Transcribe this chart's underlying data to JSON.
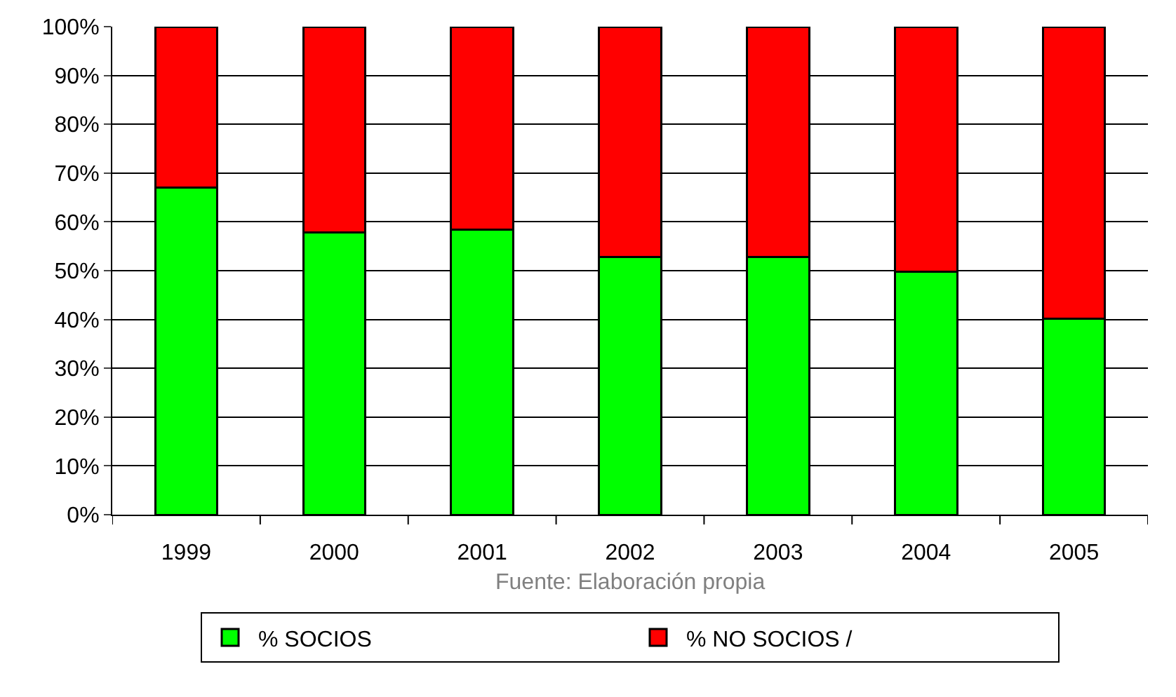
{
  "chart_data": {
    "type": "bar",
    "stacked": true,
    "categories": [
      "1999",
      "2000",
      "2001",
      "2002",
      "2003",
      "2004",
      "2005"
    ],
    "series": [
      {
        "name": "% SOCIOS",
        "color": "#00ff00",
        "values": [
          67.0,
          57.9,
          58.4,
          52.8,
          52.8,
          49.8,
          40.1
        ]
      },
      {
        "name": "% NO SOCIOS /",
        "color": "#ff0000",
        "values": [
          33.0,
          42.1,
          41.6,
          47.2,
          47.2,
          50.2,
          59.9
        ]
      }
    ],
    "ylim": [
      0,
      100
    ],
    "yticks": [
      {
        "value": 0,
        "label": "0%"
      },
      {
        "value": 10,
        "label": "10%"
      },
      {
        "value": 20,
        "label": "20%"
      },
      {
        "value": 30,
        "label": "30%"
      },
      {
        "value": 40,
        "label": "40%"
      },
      {
        "value": 50,
        "label": "50%"
      },
      {
        "value": 60,
        "label": "60%"
      },
      {
        "value": 70,
        "label": "70%"
      },
      {
        "value": 80,
        "label": "80%"
      },
      {
        "value": 90,
        "label": "90%"
      },
      {
        "value": 100,
        "label": "100%"
      }
    ],
    "grid": "y",
    "legend": "bottom",
    "annotations": [
      "Fuente: Elaboración propia"
    ]
  }
}
